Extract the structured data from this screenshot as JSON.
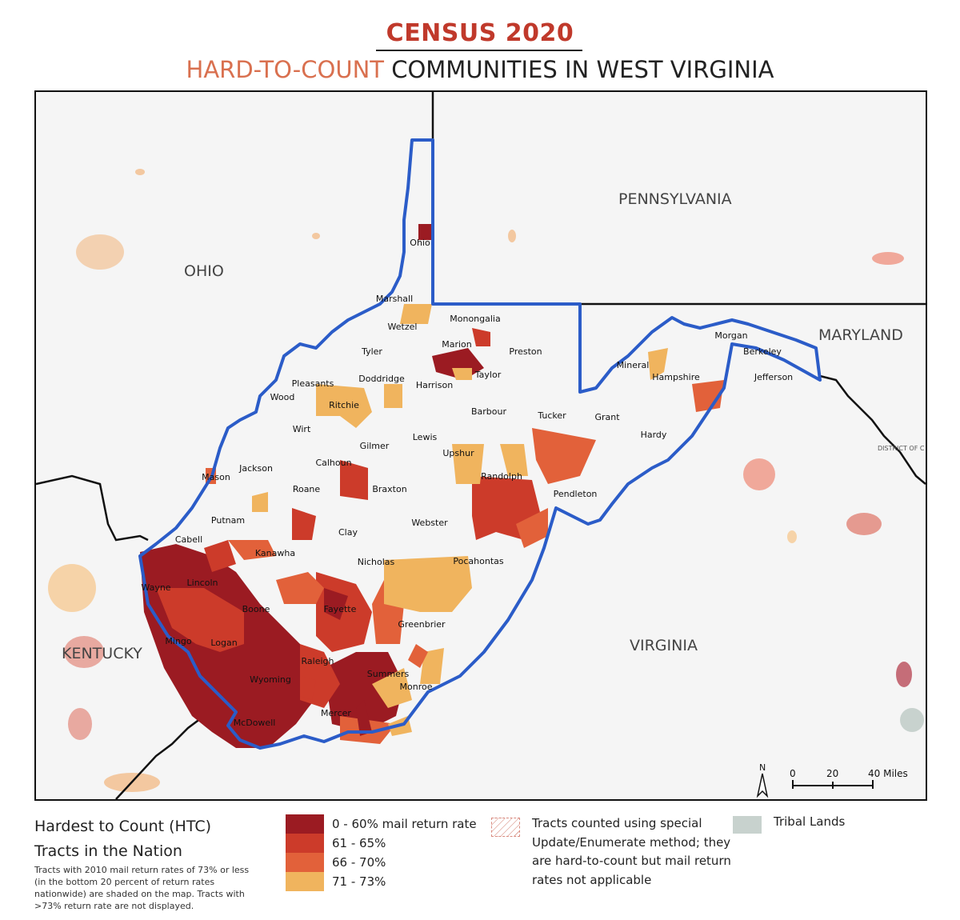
{
  "header": {
    "title": "CENSUS 2020",
    "subtitle_accent": "HARD-TO-COUNT",
    "subtitle_rest": " COMMUNITIES IN WEST VIRGINIA"
  },
  "map": {
    "state_labels": {
      "ohio": "OHIO",
      "pennsylvania": "PENNSYLVANIA",
      "maryland": "MARYLAND",
      "virginia": "VIRGINIA",
      "kentucky": "KENTUCKY",
      "dc": "DISTRICT OF C"
    },
    "counties": [
      "Ohio",
      "Marshall",
      "Wetzel",
      "Monongalia",
      "Tyler",
      "Marion",
      "Preston",
      "Pleasants",
      "Doddridge",
      "Harrison",
      "Taylor",
      "Wood",
      "Ritchie",
      "Barbour",
      "Tucker",
      "Wirt",
      "Gilmer",
      "Lewis",
      "Upshur",
      "Grant",
      "Hardy",
      "Mineral",
      "Hampshire",
      "Morgan",
      "Berkeley",
      "Jefferson",
      "Mason",
      "Jackson",
      "Calhoun",
      "Roane",
      "Braxton",
      "Randolph",
      "Pendleton",
      "Putnam",
      "Webster",
      "Clay",
      "Cabell",
      "Kanawha",
      "Nicholas",
      "Pocahontas",
      "Wayne",
      "Lincoln",
      "Boone",
      "Fayette",
      "Greenbrier",
      "Mingo",
      "Logan",
      "Raleigh",
      "Summers",
      "Wyoming",
      "Monroe",
      "Mercer",
      "McDowell"
    ],
    "scale_bar": {
      "north": "N",
      "ticks": [
        "0",
        "20",
        "40 Miles"
      ]
    },
    "colors": {
      "band_0_60": "#9b1b22",
      "band_61_65": "#cc3b2a",
      "band_66_70": "#e2613a",
      "band_71_73": "#f0b45e",
      "state_outline": "#2b5cc8",
      "tribal": "#c8d2ce"
    }
  },
  "legend": {
    "title_line1": "Hardest to Count (HTC)",
    "title_line2": "Tracts in the Nation",
    "note": "Tracts with 2010 mail return rates of 73% or less (in the bottom 20 percent of return rates nationwide) are shaded on the map. Tracts with >73% return rate are not displayed.",
    "bands": [
      {
        "label": "0 - 60% mail return rate",
        "color": "#9b1b22"
      },
      {
        "label": "61 - 65%",
        "color": "#cc3b2a"
      },
      {
        "label": "66 - 70%",
        "color": "#e2613a"
      },
      {
        "label": "71 - 73%",
        "color": "#f0b45e"
      }
    ],
    "special_method": "Tracts counted using special Update/Enumerate method; they are hard-to-count but mail return rates not applicable",
    "tribal": "Tribal Lands"
  }
}
